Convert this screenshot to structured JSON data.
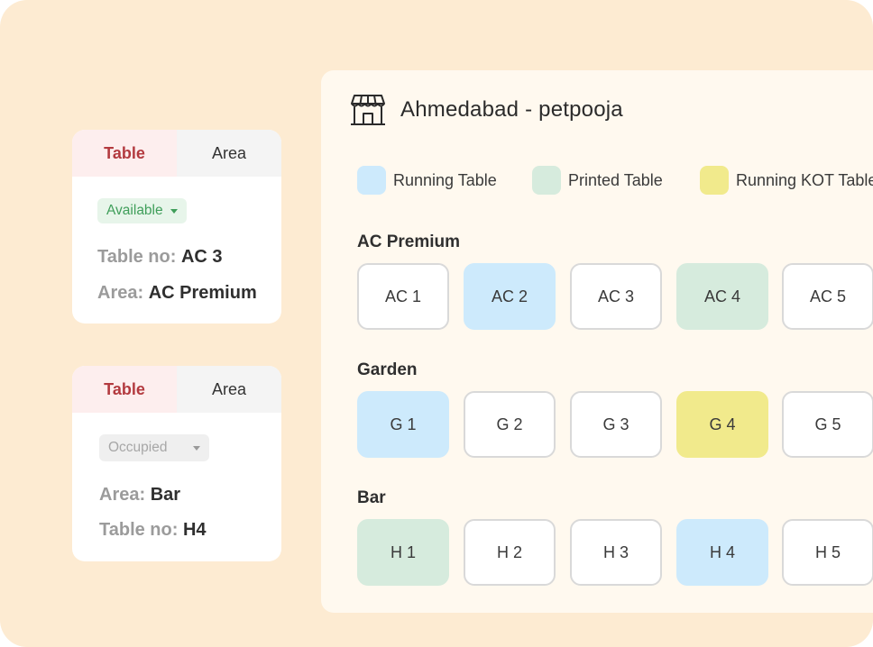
{
  "cards": [
    {
      "tabs": [
        "Table",
        "Area"
      ],
      "status": "Available",
      "lines": [
        {
          "key": "Table no:",
          "value": "AC 3"
        },
        {
          "key": "Area:",
          "value": "AC Premium"
        }
      ]
    },
    {
      "tabs": [
        "Table",
        "Area"
      ],
      "status": "Occupied",
      "lines": [
        {
          "key": "Area:",
          "value": "Bar"
        },
        {
          "key": "Table no:",
          "value": "H4"
        }
      ]
    }
  ],
  "panel": {
    "title": "Ahmedabad - petpooja",
    "icon": "store-icon",
    "legend": [
      {
        "label": "Running Table",
        "color": "#cdeafc"
      },
      {
        "label": "Printed Table",
        "color": "#d6ebdd"
      },
      {
        "label": "Running KOT Table",
        "color": "#f1ea8c"
      }
    ],
    "sections": [
      {
        "name": "AC Premium",
        "tables": [
          {
            "label": "AC 1",
            "state": "free"
          },
          {
            "label": "AC 2",
            "state": "running"
          },
          {
            "label": "AC 3",
            "state": "free"
          },
          {
            "label": "AC 4",
            "state": "printed"
          },
          {
            "label": "AC 5",
            "state": "free"
          }
        ]
      },
      {
        "name": "Garden",
        "tables": [
          {
            "label": "G 1",
            "state": "running"
          },
          {
            "label": "G 2",
            "state": "free"
          },
          {
            "label": "G 3",
            "state": "free"
          },
          {
            "label": "G 4",
            "state": "kot"
          },
          {
            "label": "G 5",
            "state": "free"
          }
        ]
      },
      {
        "name": "Bar",
        "tables": [
          {
            "label": "H 1",
            "state": "printed"
          },
          {
            "label": "H 2",
            "state": "free"
          },
          {
            "label": "H 3",
            "state": "free"
          },
          {
            "label": "H 4",
            "state": "running"
          },
          {
            "label": "H 5",
            "state": "free"
          }
        ]
      }
    ]
  }
}
